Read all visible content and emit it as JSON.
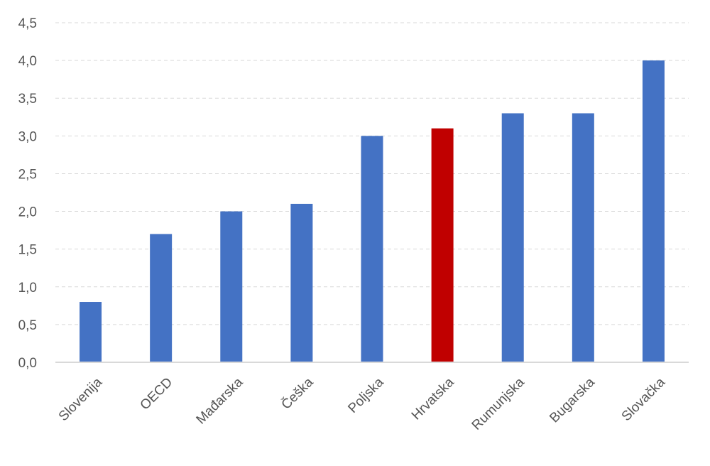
{
  "chart_data": {
    "type": "bar",
    "categories": [
      "Slovenija",
      "OECD",
      "Mađarska",
      "Češka",
      "Poljska",
      "Hrvatska",
      "Rumunjska",
      "Bugarska",
      "Slovačka"
    ],
    "values": [
      0.8,
      1.7,
      2.0,
      2.1,
      3.0,
      3.1,
      3.3,
      3.3,
      4.0
    ],
    "y_ticks": [
      "0,0",
      "0,5",
      "1,0",
      "1,5",
      "2,0",
      "2,5",
      "3,0",
      "3,5",
      "4,0",
      "4,5"
    ],
    "ylim": [
      0,
      4.5
    ],
    "grid": true,
    "legend": "none",
    "colors": {
      "default_bar": "#4472C4",
      "highlight_bar": "#C00000",
      "gridline": "#D9D9D9",
      "axis": "#D9D9D9",
      "text": "#555555"
    },
    "highlight_category": "Hrvatska"
  }
}
